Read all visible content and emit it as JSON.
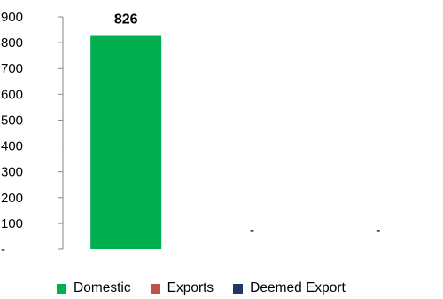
{
  "chart_data": {
    "type": "bar",
    "title": "",
    "xlabel": "",
    "ylabel": "",
    "ylim": [
      0,
      900
    ],
    "yticks": [
      0,
      100,
      200,
      300,
      400,
      500,
      600,
      700,
      800,
      900
    ],
    "ytick_labels": [
      "-",
      "100",
      "200",
      "300",
      "400",
      "500",
      "600",
      "700",
      "800",
      "900"
    ],
    "categories": [
      "Domestic",
      "Exports",
      "Deemed Export"
    ],
    "values": [
      826,
      0,
      0
    ],
    "data_labels": [
      "826",
      "-",
      "-"
    ],
    "colors": [
      "#00b050",
      "#c0504d",
      "#1f3864"
    ],
    "grid": false,
    "legend_position": "bottom"
  }
}
